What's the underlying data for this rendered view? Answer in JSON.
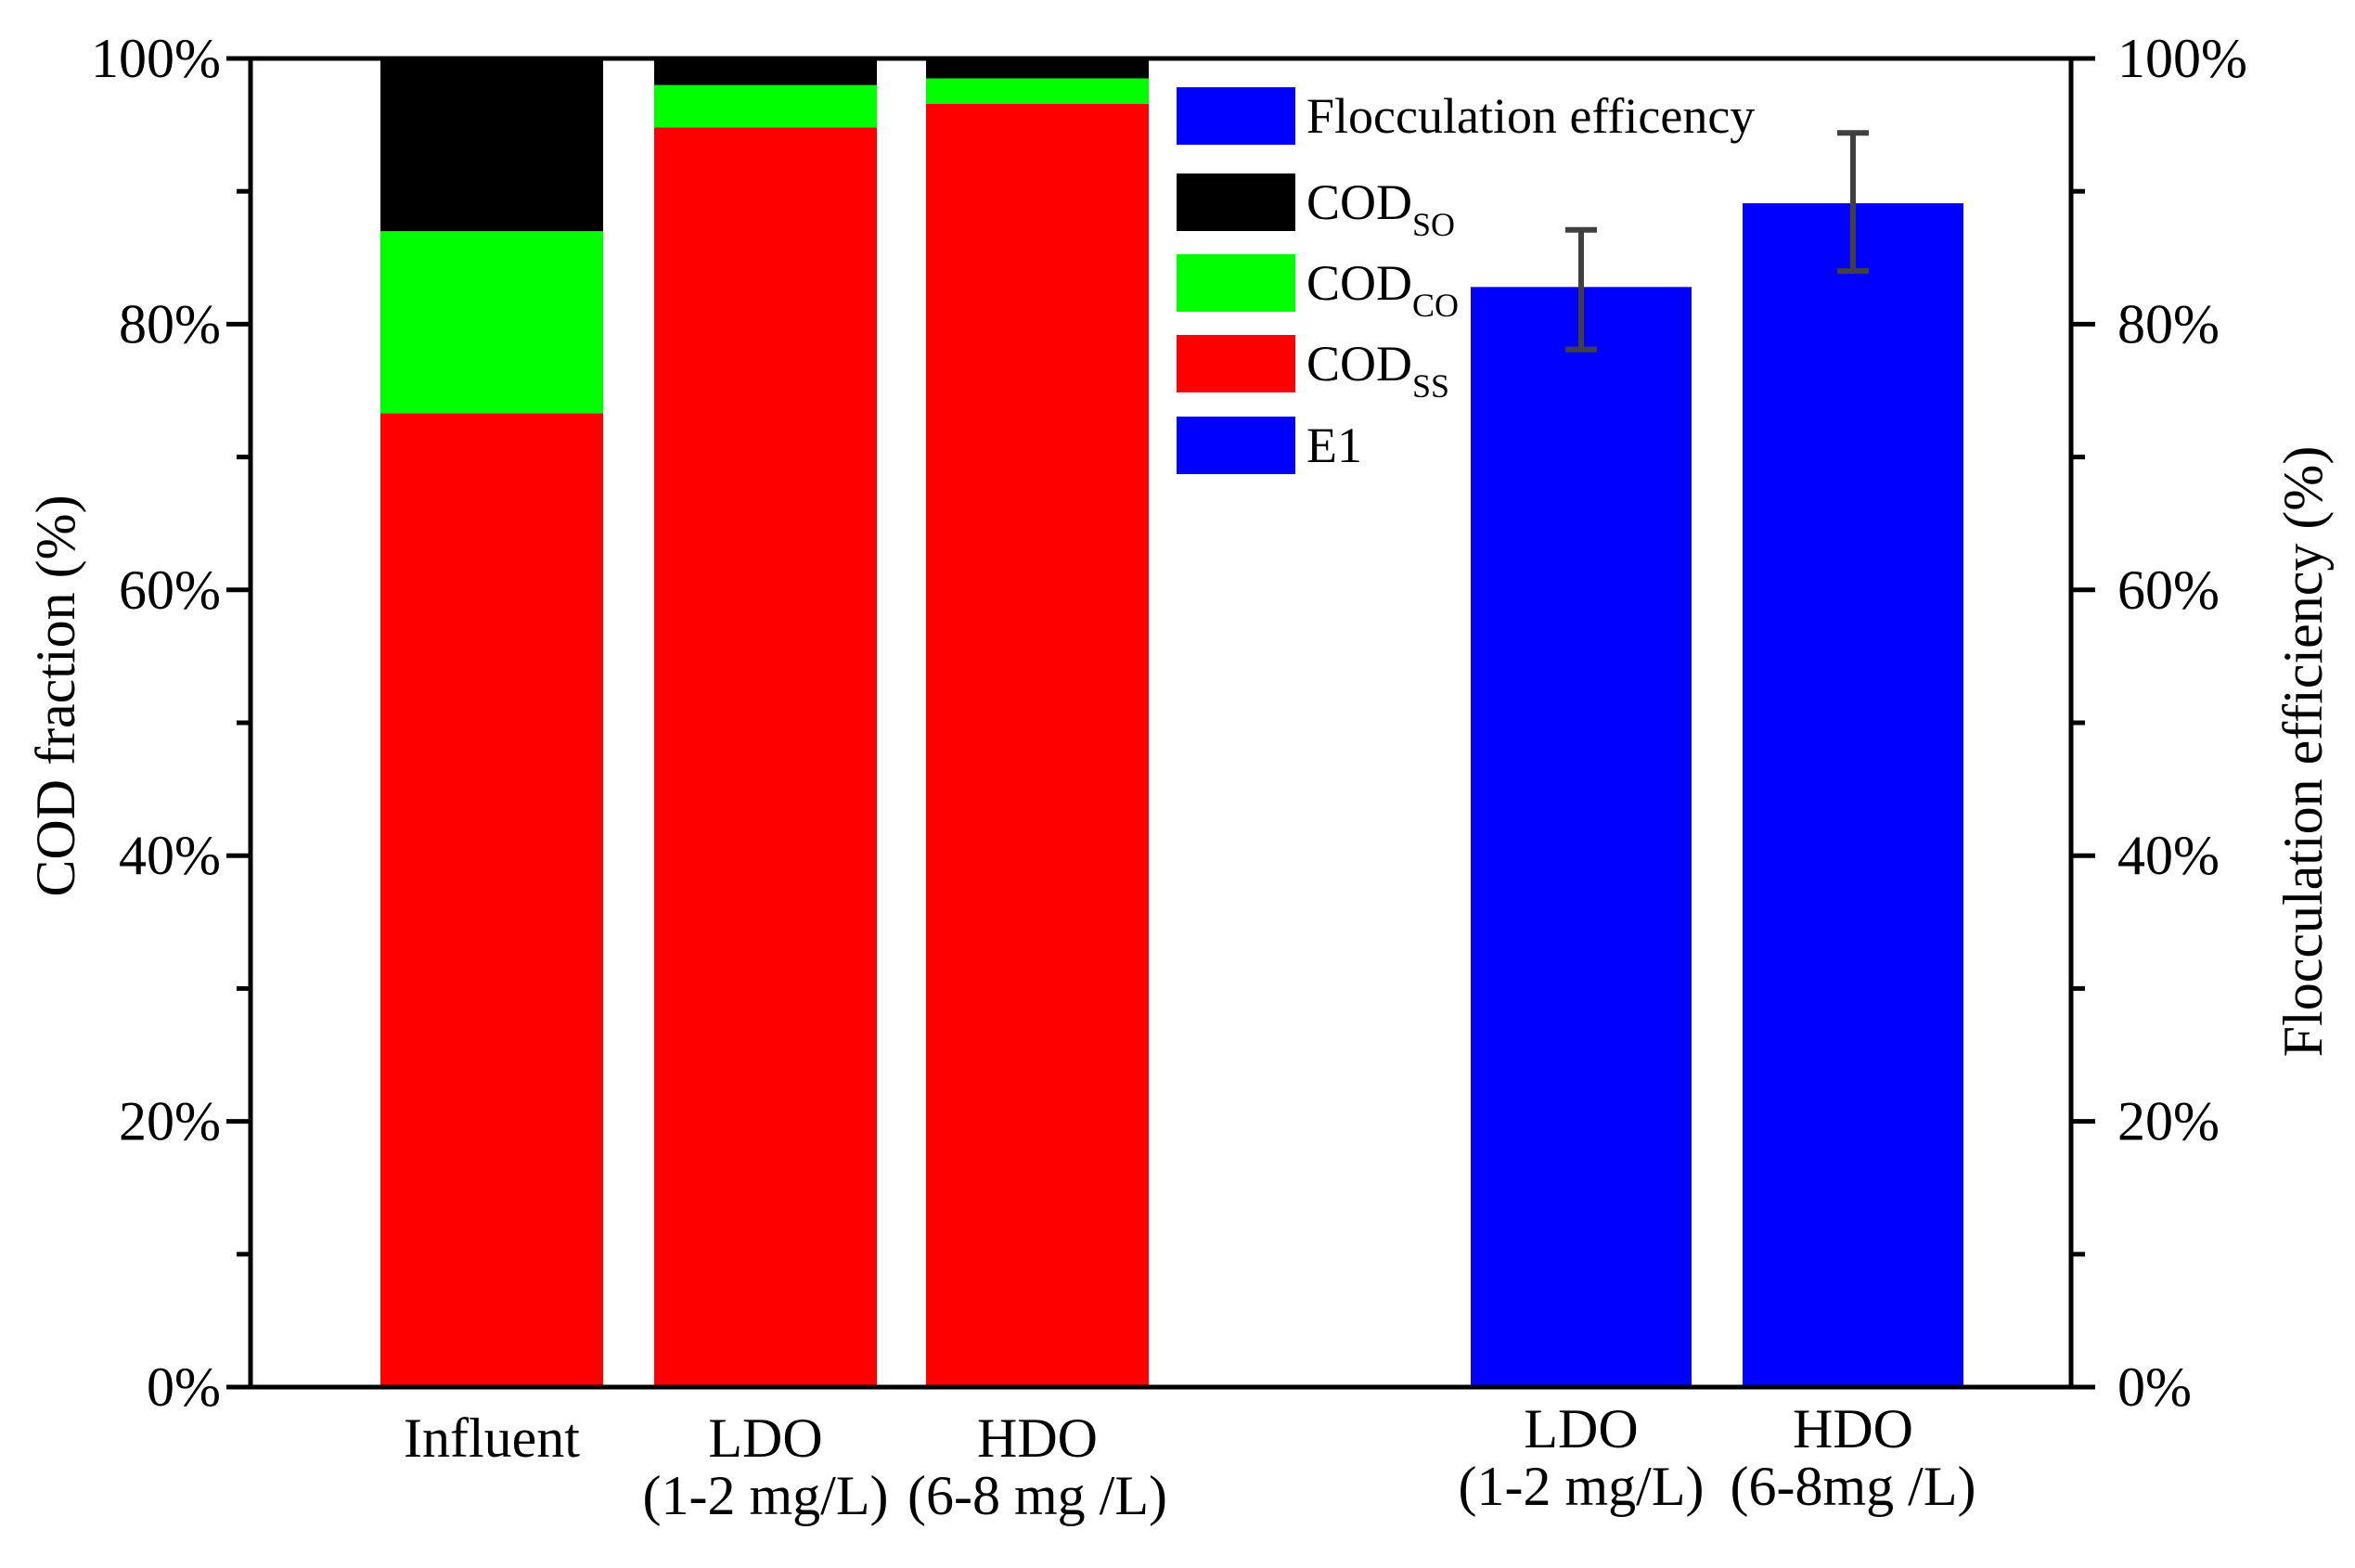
{
  "chart_data": {
    "type": "bar",
    "ylabel_left": "COD fraction (%)",
    "ylabel_right": "Flocculation efficiency (%)",
    "ylim": [
      0,
      100
    ],
    "yticks": [
      "0%",
      "20%",
      "40%",
      "60%",
      "80%",
      "100%"
    ],
    "colors": {
      "cod_so": "#000000",
      "cod_co": "#00ff00",
      "cod_ss": "#ff0000",
      "e1": "#0000ff",
      "error_bar": "#404040"
    },
    "stacked_groups": [
      {
        "label_lines": [
          "Influent"
        ],
        "cod_ss": 73.3,
        "cod_co": 13.7,
        "cod_so": 13.0
      },
      {
        "label_lines": [
          "LDO",
          "(1-2 mg/L)"
        ],
        "cod_ss": 94.8,
        "cod_co": 3.2,
        "cod_so": 2.0
      },
      {
        "label_lines": [
          "HDO",
          "(6-8 mg /L)"
        ],
        "cod_ss": 96.6,
        "cod_co": 1.9,
        "cod_so": 1.5
      }
    ],
    "efficiency_groups": [
      {
        "label_lines": [
          "LDO",
          "(1-2 mg/L)"
        ],
        "e1": 82.8,
        "err_low": 78.1,
        "err_high": 87.1
      },
      {
        "label_lines": [
          "HDO",
          "(6-8mg /L)"
        ],
        "e1": 89.1,
        "err_low": 84.0,
        "err_high": 94.4
      }
    ],
    "legend": {
      "position": "top-center",
      "items": [
        {
          "key": "e1",
          "text": "Flocculation efficency",
          "sub": ""
        },
        {
          "key": "cod_so",
          "text": "COD",
          "sub": "SO"
        },
        {
          "key": "cod_co",
          "text": "COD",
          "sub": "CO"
        },
        {
          "key": "cod_ss",
          "text": "COD",
          "sub": "SS"
        },
        {
          "key": "e1",
          "text": "E1",
          "sub": ""
        }
      ]
    }
  }
}
